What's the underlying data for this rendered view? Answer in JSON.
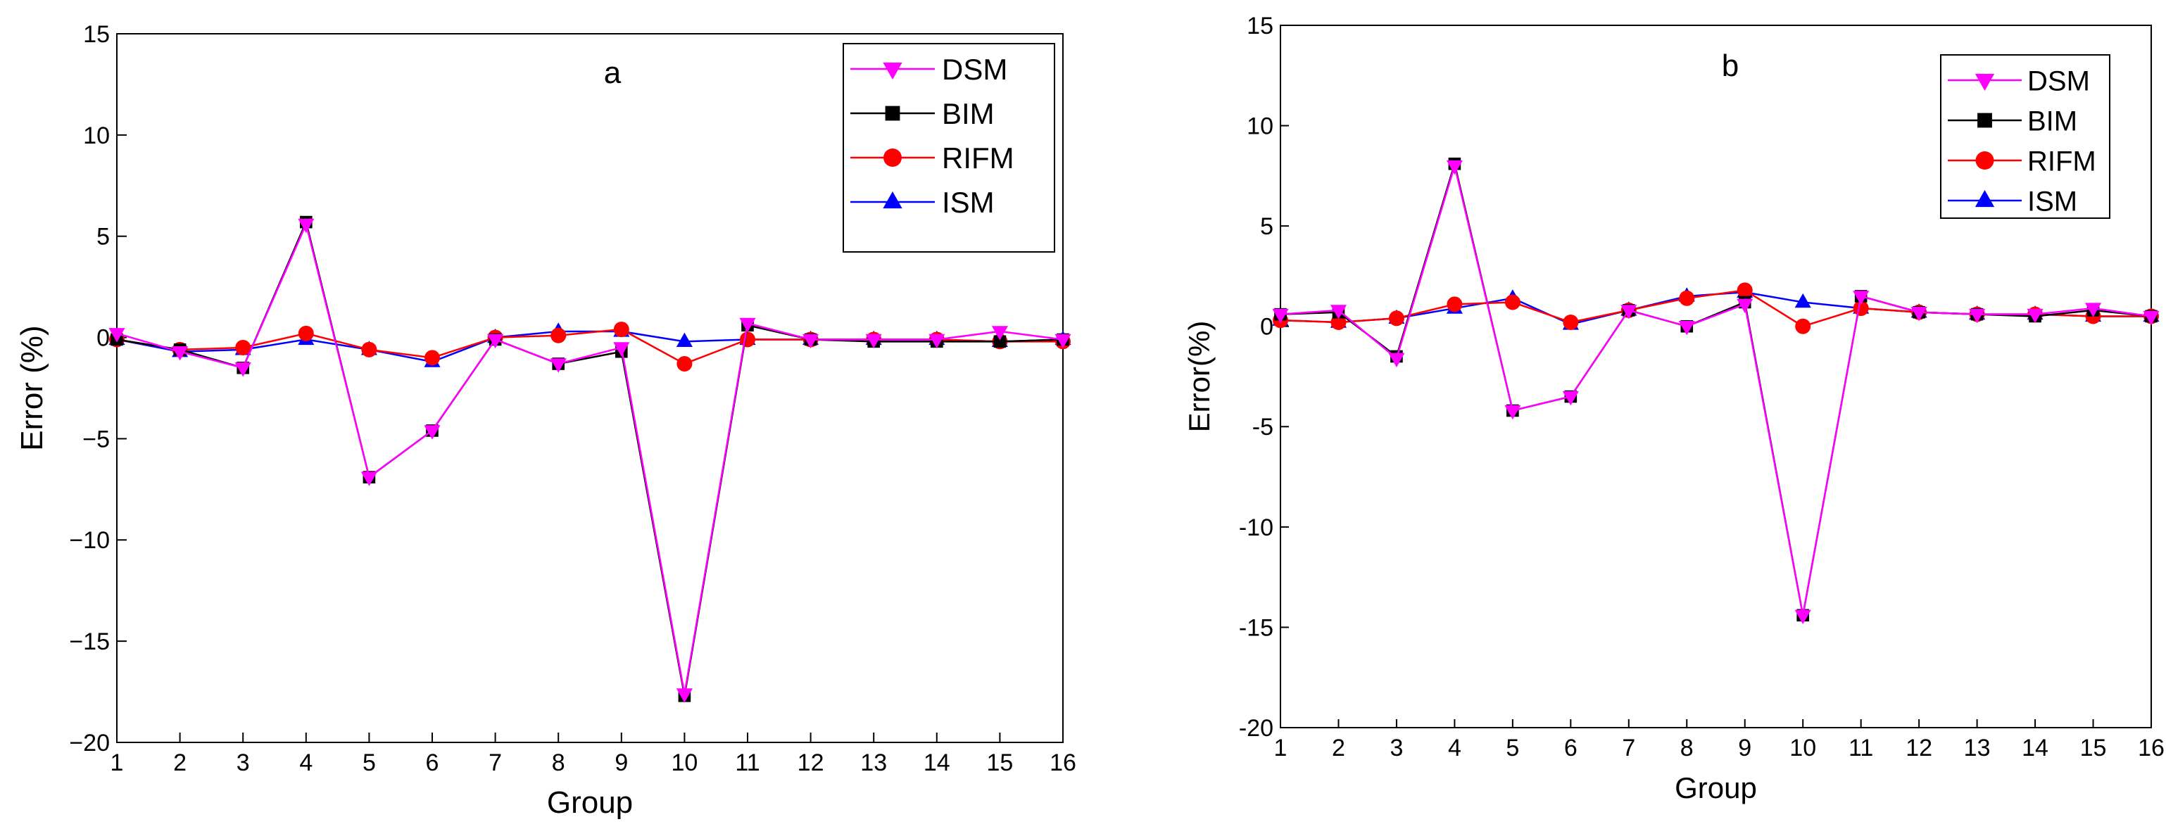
{
  "chart_data": [
    {
      "type": "line",
      "title": "a",
      "xlabel": "Group",
      "ylabel": "Error (%)",
      "xlim": [
        1,
        16
      ],
      "ylim": [
        -20,
        15
      ],
      "xticks": [
        1,
        2,
        3,
        4,
        5,
        6,
        7,
        8,
        9,
        10,
        11,
        12,
        13,
        14,
        15,
        16
      ],
      "yticks": [
        15,
        10,
        5,
        0,
        -5,
        -10,
        -15,
        -20
      ],
      "ytick_labels": [
        "15",
        "10",
        "5",
        "0",
        "−5",
        "−10",
        "−15",
        "−20"
      ],
      "grid": false,
      "legend_position": "top-right",
      "legend_boxed": true,
      "x": [
        1,
        2,
        3,
        4,
        5,
        6,
        7,
        8,
        9,
        10,
        11,
        12,
        13,
        14,
        15,
        16
      ],
      "series": [
        {
          "name": "DSM",
          "color": "#ff00ff",
          "marker": "triangle-down",
          "values": [
            0.2,
            -0.7,
            -1.5,
            5.6,
            -6.9,
            -4.6,
            -0.1,
            -1.3,
            -0.5,
            -17.6,
            0.7,
            -0.1,
            -0.1,
            -0.1,
            0.3,
            -0.1
          ]
        },
        {
          "name": "BIM",
          "color": "#000000",
          "marker": "square",
          "values": [
            -0.1,
            -0.6,
            -1.5,
            5.7,
            -6.9,
            -4.6,
            -0.1,
            -1.3,
            -0.7,
            -17.7,
            0.6,
            -0.1,
            -0.2,
            -0.2,
            -0.2,
            -0.1
          ]
        },
        {
          "name": "RIFM",
          "color": "#ff0000",
          "marker": "circle",
          "values": [
            -0.1,
            -0.6,
            -0.5,
            0.2,
            -0.6,
            -1.0,
            0.0,
            0.1,
            0.4,
            -1.3,
            -0.1,
            -0.1,
            -0.1,
            -0.1,
            -0.2,
            -0.2
          ]
        },
        {
          "name": "ISM",
          "color": "#0000ff",
          "marker": "triangle-up",
          "values": [
            -0.1,
            -0.7,
            -0.6,
            -0.1,
            -0.6,
            -1.2,
            0.0,
            0.3,
            0.3,
            -0.2,
            -0.1,
            -0.1,
            -0.1,
            -0.1,
            -0.2,
            -0.1
          ]
        }
      ]
    },
    {
      "type": "line",
      "title": "b",
      "xlabel": "Group",
      "ylabel": "Error(%)",
      "xlim": [
        1,
        16
      ],
      "ylim": [
        -20,
        15
      ],
      "xticks": [
        1,
        2,
        3,
        4,
        5,
        6,
        7,
        8,
        9,
        10,
        11,
        12,
        13,
        14,
        15,
        16
      ],
      "yticks": [
        15,
        10,
        5,
        0,
        -5,
        -10,
        -15,
        -20
      ],
      "ytick_labels": [
        "15",
        "10",
        "5",
        "0",
        "-5",
        "-10",
        "-15",
        "-20"
      ],
      "grid": false,
      "legend_position": "top-right",
      "legend_boxed": true,
      "x": [
        1,
        2,
        3,
        4,
        5,
        6,
        7,
        8,
        9,
        10,
        11,
        12,
        13,
        14,
        15,
        16
      ],
      "series": [
        {
          "name": "DSM",
          "color": "#ff00ff",
          "marker": "triangle-down",
          "values": [
            0.6,
            0.8,
            -1.6,
            8.0,
            -4.2,
            -3.5,
            0.8,
            0.0,
            1.1,
            -14.4,
            1.5,
            0.7,
            0.6,
            0.6,
            0.9,
            0.5
          ]
        },
        {
          "name": "BIM",
          "color": "#000000",
          "marker": "square",
          "values": [
            0.6,
            0.7,
            -1.5,
            8.1,
            -4.2,
            -3.5,
            0.8,
            0.0,
            1.2,
            -14.4,
            1.5,
            0.7,
            0.6,
            0.5,
            0.8,
            0.5
          ]
        },
        {
          "name": "RIFM",
          "color": "#ff0000",
          "marker": "circle",
          "values": [
            0.3,
            0.2,
            0.4,
            1.1,
            1.2,
            0.2,
            0.8,
            1.4,
            1.8,
            0.0,
            0.9,
            0.7,
            0.6,
            0.6,
            0.5,
            0.5
          ]
        },
        {
          "name": "ISM",
          "color": "#0000ff",
          "marker": "triangle-up",
          "values": [
            0.3,
            0.2,
            0.4,
            0.9,
            1.4,
            0.1,
            0.8,
            1.5,
            1.7,
            1.2,
            0.9,
            0.7,
            0.6,
            0.6,
            0.5,
            0.5
          ]
        }
      ]
    }
  ]
}
